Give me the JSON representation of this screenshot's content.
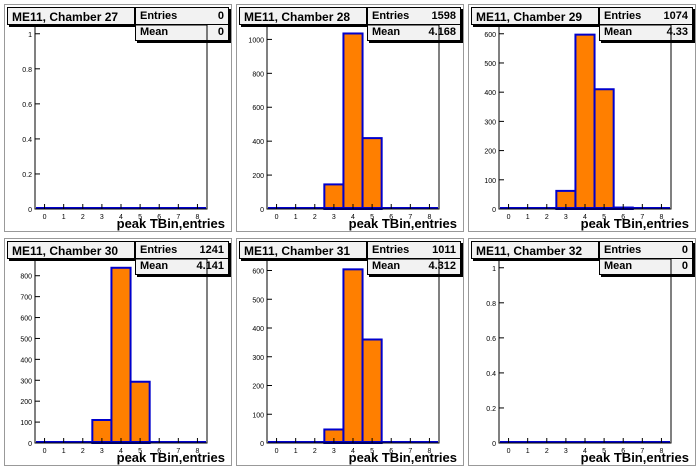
{
  "chart_data": [
    {
      "type": "bar",
      "title": "ME11, Chamber 27",
      "xlabel": "peak TBin,entries",
      "stats": {
        "entries_label": "Entries",
        "entries": "0",
        "mean_label": "Mean",
        "mean": "0"
      },
      "x_ticks": [
        "0",
        "1",
        "2",
        "3",
        "4",
        "5",
        "6",
        "7",
        "8"
      ],
      "y_ticks": [
        "0",
        "0.2",
        "0.4",
        "0.6",
        "0.8",
        "1"
      ],
      "ylim": [
        0,
        1.05
      ],
      "xlim": [
        -0.5,
        8.5
      ],
      "categories": [
        0,
        1,
        2,
        3,
        4,
        5,
        6,
        7,
        8
      ],
      "values": [
        0,
        0,
        0,
        0,
        0,
        0,
        0,
        0,
        0
      ]
    },
    {
      "type": "bar",
      "title": "ME11, Chamber 28",
      "xlabel": "peak TBin,entries",
      "stats": {
        "entries_label": "Entries",
        "entries": "1598",
        "mean_label": "Mean",
        "mean": "4.168"
      },
      "x_ticks": [
        "0",
        "1",
        "2",
        "3",
        "4",
        "5",
        "6",
        "7",
        "8"
      ],
      "y_ticks": [
        "0",
        "200",
        "400",
        "600",
        "800",
        "1000"
      ],
      "ylim": [
        0,
        1085
      ],
      "xlim": [
        -0.5,
        8.5
      ],
      "categories": [
        0,
        1,
        2,
        3,
        4,
        5,
        6,
        7,
        8
      ],
      "values": [
        0,
        0,
        0,
        145,
        1035,
        418,
        0,
        0,
        0
      ]
    },
    {
      "type": "bar",
      "title": "ME11, Chamber 29",
      "xlabel": "peak TBin,entries",
      "stats": {
        "entries_label": "Entries",
        "entries": "1074",
        "mean_label": "Mean",
        "mean": "4.33"
      },
      "x_ticks": [
        "0",
        "1",
        "2",
        "3",
        "4",
        "5",
        "6",
        "7",
        "8"
      ],
      "y_ticks": [
        "0",
        "100",
        "200",
        "300",
        "400",
        "500",
        "600"
      ],
      "ylim": [
        0,
        630
      ],
      "xlim": [
        -0.5,
        8.5
      ],
      "categories": [
        0,
        1,
        2,
        3,
        4,
        5,
        6,
        7,
        8
      ],
      "values": [
        0,
        0,
        0,
        62,
        597,
        410,
        5,
        0,
        0
      ]
    },
    {
      "type": "bar",
      "title": "ME11, Chamber 30",
      "xlabel": "peak TBin,entries",
      "stats": {
        "entries_label": "Entries",
        "entries": "1241",
        "mean_label": "Mean",
        "mean": "4.141"
      },
      "x_ticks": [
        "0",
        "1",
        "2",
        "3",
        "4",
        "5",
        "6",
        "7",
        "8"
      ],
      "y_ticks": [
        "0",
        "100",
        "200",
        "300",
        "400",
        "500",
        "600",
        "700",
        "800"
      ],
      "ylim": [
        0,
        880
      ],
      "xlim": [
        -0.5,
        8.5
      ],
      "categories": [
        0,
        1,
        2,
        3,
        4,
        5,
        6,
        7,
        8
      ],
      "values": [
        0,
        0,
        0,
        110,
        838,
        293,
        0,
        0,
        0
      ]
    },
    {
      "type": "bar",
      "title": "ME11, Chamber 31",
      "xlabel": "peak TBin,entries",
      "stats": {
        "entries_label": "Entries",
        "entries": "1011",
        "mean_label": "Mean",
        "mean": "4.312"
      },
      "x_ticks": [
        "0",
        "1",
        "2",
        "3",
        "4",
        "5",
        "6",
        "7",
        "8"
      ],
      "y_ticks": [
        "0",
        "100",
        "200",
        "300",
        "400",
        "500",
        "600"
      ],
      "ylim": [
        0,
        640
      ],
      "xlim": [
        -0.5,
        8.5
      ],
      "categories": [
        0,
        1,
        2,
        3,
        4,
        5,
        6,
        7,
        8
      ],
      "values": [
        0,
        0,
        0,
        47,
        604,
        360,
        0,
        0,
        0
      ]
    },
    {
      "type": "bar",
      "title": "ME11, Chamber 32",
      "xlabel": "peak TBin,entries",
      "stats": {
        "entries_label": "Entries",
        "entries": "0",
        "mean_label": "Mean",
        "mean": "0"
      },
      "x_ticks": [
        "0",
        "1",
        "2",
        "3",
        "4",
        "5",
        "6",
        "7",
        "8"
      ],
      "y_ticks": [
        "0",
        "0.2",
        "0.4",
        "0.6",
        "0.8",
        "1"
      ],
      "ylim": [
        0,
        1.05
      ],
      "xlim": [
        -0.5,
        8.5
      ],
      "categories": [
        0,
        1,
        2,
        3,
        4,
        5,
        6,
        7,
        8
      ],
      "values": [
        0,
        0,
        0,
        0,
        0,
        0,
        0,
        0,
        0
      ]
    }
  ],
  "colors": {
    "fill": "#ff7f00",
    "line": "#0000cc",
    "frame": "#000000"
  }
}
